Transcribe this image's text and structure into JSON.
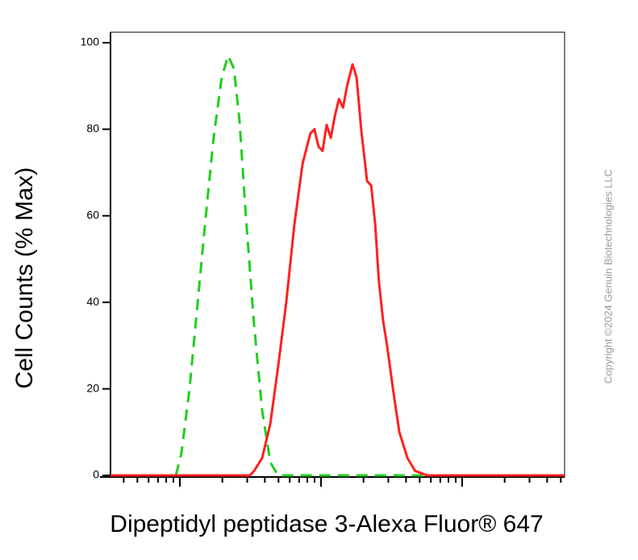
{
  "chart_data": {
    "type": "line",
    "y_label": "Cell Counts (% Max)",
    "x_label": "Dipeptidyl peptidase 3-Alexa Fluor® 647",
    "copyright": "Copyright ©2024 Genuin Biotechnologies LLC",
    "xlim": [
      0,
      100
    ],
    "ylim": [
      0,
      100
    ],
    "yticks": [
      0,
      20,
      40,
      60,
      80,
      100
    ],
    "series": [
      {
        "color": "#22cc22",
        "dashed": true,
        "x": [
          14.4,
          15.6,
          17.4,
          19.2,
          21.0,
          22.7,
          24.5,
          25.9,
          27.2,
          28.4,
          29.8,
          31.6,
          33.4,
          35.2,
          36.9,
          100
        ],
        "values": [
          0,
          5,
          20,
          40,
          60,
          78,
          92,
          97,
          94,
          82,
          60,
          35,
          15,
          3,
          0,
          0
        ]
      },
      {
        "color": "#ff2020",
        "dashed": false,
        "x": [
          0,
          30.7,
          31.6,
          33.4,
          35.2,
          36.9,
          38.7,
          40.5,
          42.3,
          44.0,
          44.9,
          45.8,
          46.7,
          47.6,
          48.5,
          49.4,
          50.3,
          51.2,
          52.1,
          53.3,
          54.2,
          55.2,
          56.5,
          57.4,
          58.3,
          59.1,
          60.0,
          60.9,
          62.2,
          63.6,
          65.4,
          67.1,
          69.8,
          100
        ],
        "values": [
          0,
          0,
          1,
          4,
          12,
          25,
          40,
          58,
          72,
          79,
          80,
          76,
          75,
          81,
          78,
          83,
          87,
          85,
          90,
          95,
          92,
          80,
          68,
          67,
          58,
          45,
          36,
          30,
          20,
          10,
          4,
          1,
          0,
          0
        ]
      }
    ]
  }
}
